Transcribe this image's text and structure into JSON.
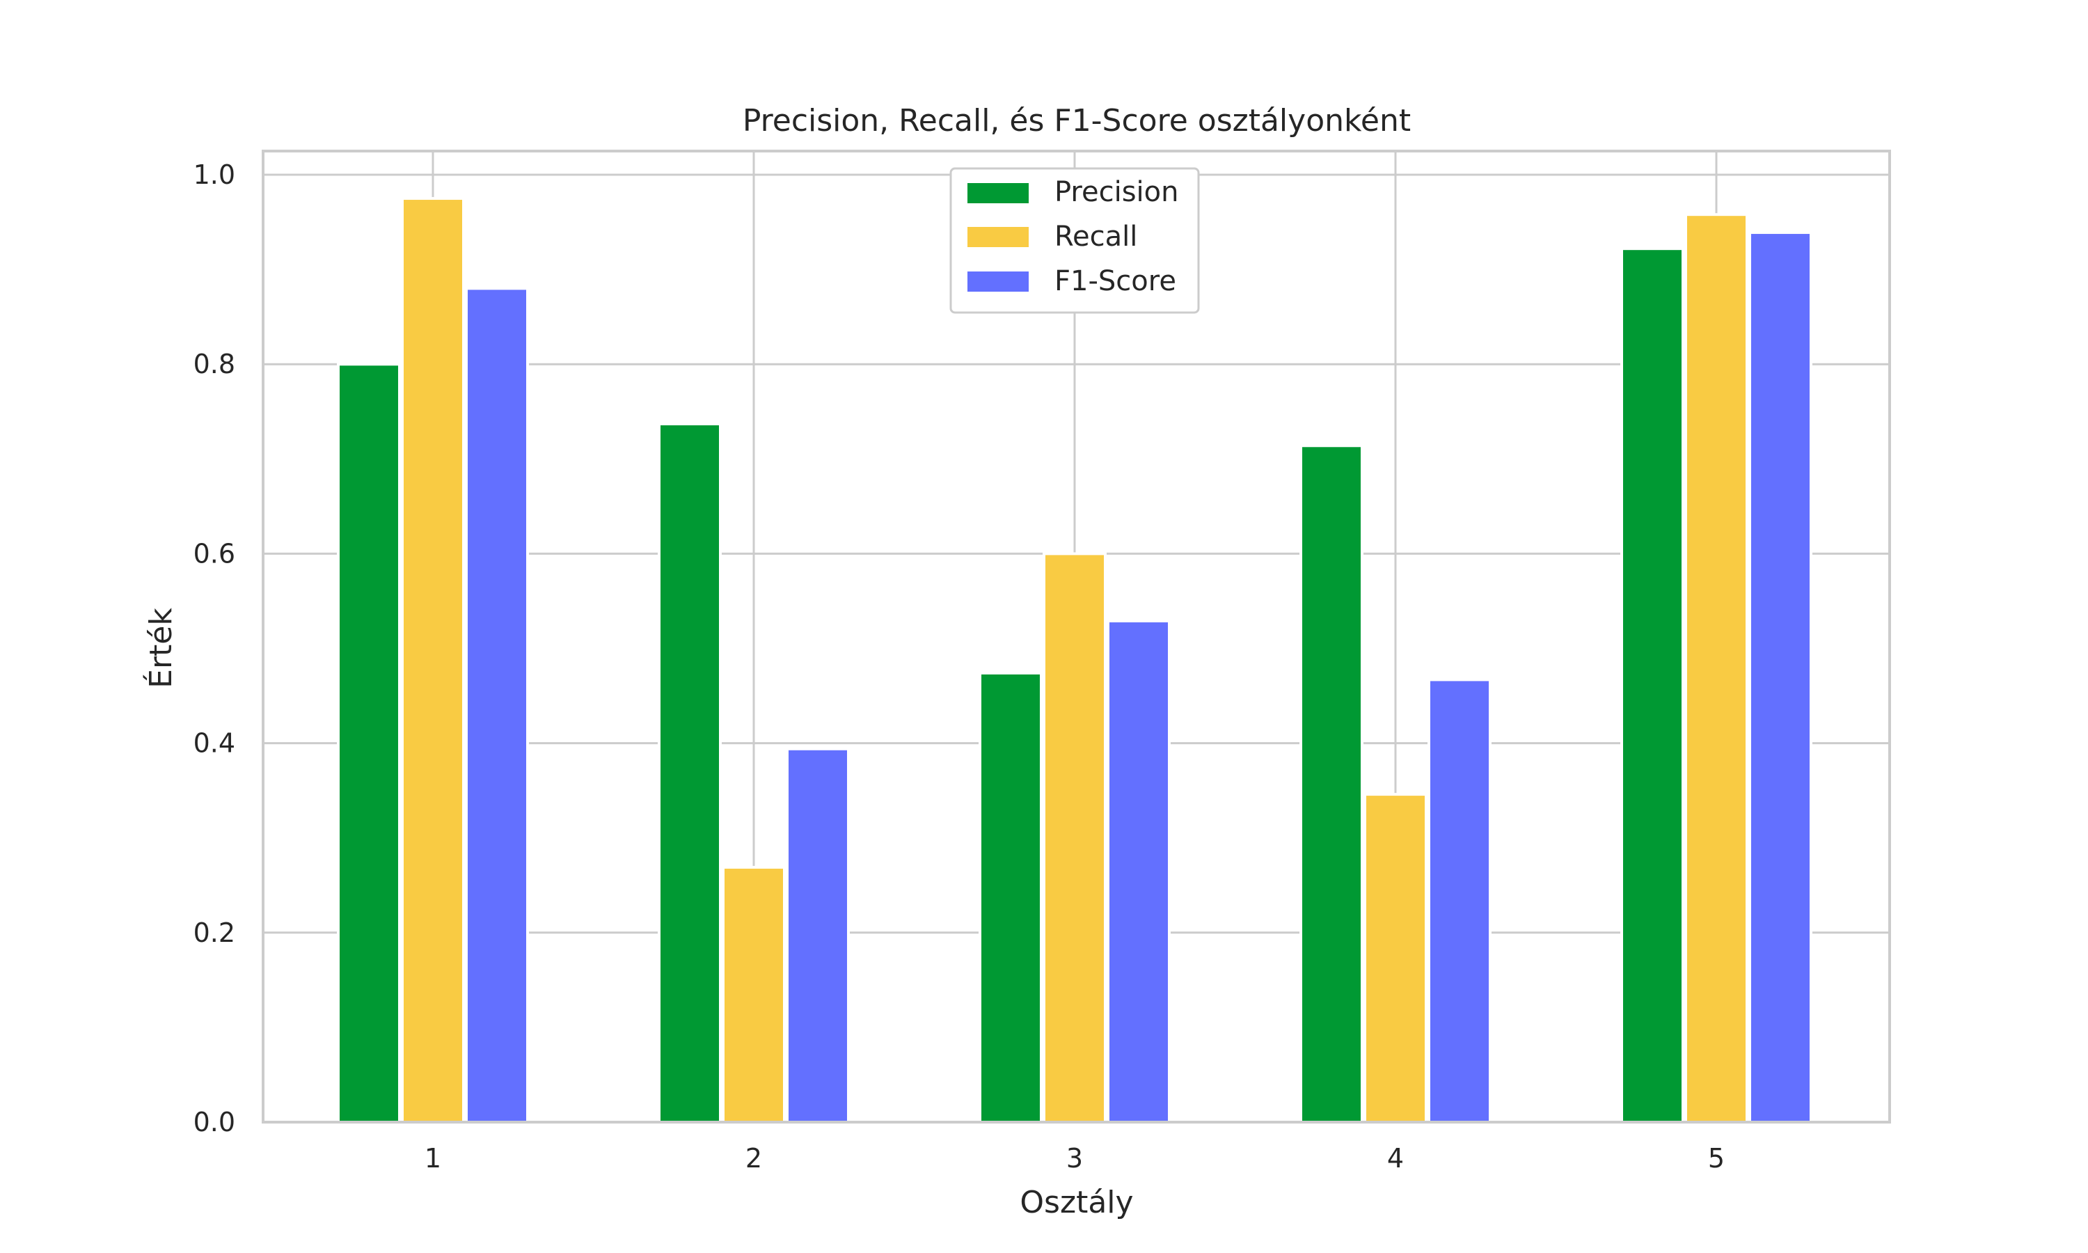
{
  "chart_data": {
    "type": "bar",
    "title": "Precision, Recall, és F1-Score osztályonként",
    "xlabel": "Osztály",
    "ylabel": "Érték",
    "categories": [
      "1",
      "2",
      "3",
      "4",
      "5"
    ],
    "series": [
      {
        "name": "Precision",
        "color": "#009933",
        "values": [
          0.8,
          0.737,
          0.474,
          0.714,
          0.922
        ]
      },
      {
        "name": "Recall",
        "color": "#F9CB43",
        "values": [
          0.975,
          0.269,
          0.6,
          0.346,
          0.958
        ]
      },
      {
        "name": "F1-Score",
        "color": "#6370FF",
        "values": [
          0.88,
          0.394,
          0.529,
          0.467,
          0.939
        ]
      }
    ],
    "ylim": [
      0,
      1.025
    ],
    "yticks": [
      "0.0",
      "0.2",
      "0.4",
      "0.6",
      "0.8",
      "1.0"
    ],
    "grid": true,
    "legend_position": "top-center"
  }
}
